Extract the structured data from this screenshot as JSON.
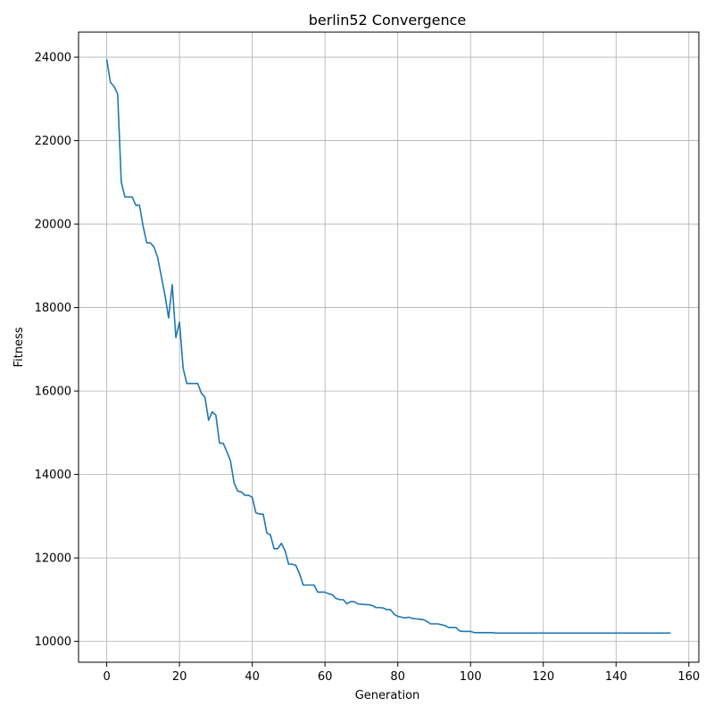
{
  "chart_data": {
    "type": "line",
    "title": "berlin52 Convergence",
    "xlabel": "Generation",
    "ylabel": "Fitness",
    "xlim": [
      -7.75,
      162.75
    ],
    "ylim": [
      9500,
      24600
    ],
    "x_ticks": [
      0,
      20,
      40,
      60,
      80,
      100,
      120,
      140,
      160
    ],
    "y_ticks": [
      10000,
      12000,
      14000,
      16000,
      18000,
      20000,
      22000,
      24000
    ],
    "grid": true,
    "line_color": "#1f77b4",
    "series": [
      {
        "x": [
          0,
          1,
          2,
          3,
          4,
          5,
          6,
          7,
          8,
          9,
          10,
          11,
          12,
          13,
          14,
          15,
          16,
          17,
          18,
          19,
          20,
          21,
          22,
          23,
          24,
          25,
          26,
          27,
          28,
          29,
          30,
          31,
          32,
          33,
          34,
          35,
          36,
          37,
          38,
          39,
          40,
          41,
          42,
          43,
          44,
          45,
          46,
          47,
          48,
          49,
          50,
          51,
          52,
          53,
          54,
          55,
          56,
          57,
          58,
          59,
          60,
          61,
          62,
          63,
          64,
          65,
          66,
          67,
          68,
          69,
          70,
          71,
          72,
          73,
          74,
          75,
          76,
          77,
          78,
          79,
          80,
          81,
          82,
          83,
          84,
          85,
          86,
          87,
          88,
          89,
          90,
          91,
          92,
          93,
          94,
          95,
          96,
          97,
          98,
          99,
          100,
          101,
          102,
          103,
          104,
          105,
          106,
          107,
          108,
          109,
          110,
          155
        ],
        "y": [
          23950,
          23400,
          23300,
          23120,
          21000,
          20650,
          20650,
          20650,
          20450,
          20450,
          19950,
          19550,
          19550,
          19450,
          19200,
          18750,
          18300,
          17750,
          18550,
          17280,
          17650,
          16550,
          16180,
          16180,
          16180,
          16180,
          15950,
          15850,
          15300,
          15500,
          15420,
          14750,
          14750,
          14550,
          14330,
          13800,
          13600,
          13580,
          13500,
          13500,
          13450,
          13080,
          13050,
          13050,
          12600,
          12550,
          12220,
          12220,
          12350,
          12180,
          11850,
          11850,
          11820,
          11620,
          11350,
          11350,
          11350,
          11350,
          11180,
          11180,
          11180,
          11140,
          11120,
          11030,
          11000,
          11000,
          10900,
          10950,
          10950,
          10900,
          10890,
          10880,
          10880,
          10860,
          10810,
          10810,
          10800,
          10760,
          10760,
          10650,
          10600,
          10580,
          10560,
          10580,
          10550,
          10540,
          10530,
          10520,
          10480,
          10420,
          10420,
          10420,
          10400,
          10380,
          10330,
          10330,
          10330,
          10250,
          10240,
          10240,
          10240,
          10210,
          10210,
          10210,
          10210,
          10210,
          10210,
          10200,
          10200,
          10200,
          10200,
          10200
        ]
      }
    ]
  }
}
